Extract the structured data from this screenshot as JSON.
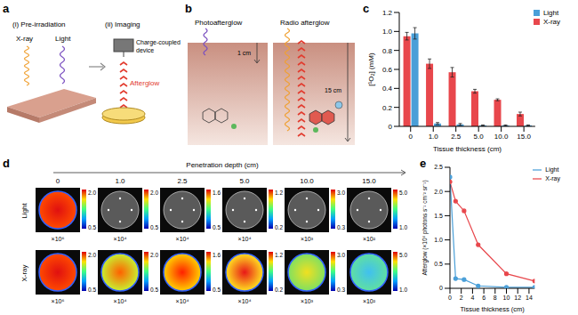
{
  "panel_labels": [
    "a",
    "b",
    "c",
    "d",
    "e"
  ],
  "panel_a": {
    "steps": [
      "(i) Pre-irradiation",
      "(ii) Imaging"
    ],
    "sources": [
      "X-ray",
      "Light"
    ],
    "detector": "Charge-coupled device",
    "signal": "Afterglow"
  },
  "panel_b": {
    "titles": [
      "Photoafterglow",
      "Radio afterglow"
    ],
    "depths": [
      "1 cm",
      "15 cm"
    ]
  },
  "panel_d": {
    "axis_label": "Penetration depth (cm)",
    "depths": [
      "0",
      "1.0",
      "2.5",
      "5.0",
      "10.0",
      "15.0"
    ],
    "rows": [
      {
        "name": "Light",
        "scales": [
          {
            "max": "2.0",
            "min": "0.5",
            "factor": "×10⁶"
          },
          {
            "max": "2.0",
            "min": "0.5",
            "factor": "×10⁴"
          },
          {
            "max": "1.6",
            "min": "0.5",
            "factor": "×10⁴"
          },
          {
            "max": "1.2",
            "min": "0.2",
            "factor": "×10⁴"
          },
          {
            "max": "3.0",
            "min": "0.3",
            "factor": "×10³"
          },
          {
            "max": "5.0",
            "min": "1.0",
            "factor": "×10²"
          }
        ]
      },
      {
        "name": "X-ray",
        "scales": [
          {
            "max": "2.0",
            "min": "0.5",
            "factor": "×10⁶"
          },
          {
            "max": "2.0",
            "min": "0.5",
            "factor": "×10⁴"
          },
          {
            "max": "1.6",
            "min": "0.5",
            "factor": "×10⁴"
          },
          {
            "max": "1.2",
            "min": "0.2",
            "factor": "×10⁴"
          },
          {
            "max": "3.0",
            "min": "0.3",
            "factor": "×10³"
          },
          {
            "max": "5.0",
            "min": "1.0",
            "factor": "×10²"
          }
        ]
      }
    ]
  },
  "chart_data": [
    {
      "type": "bar",
      "x_label": "Tissue thickness (cm)",
      "y_label": "[¹O₂] (mM)",
      "categories": [
        "0",
        "1.0",
        "2.5",
        "5.0",
        "10.0",
        "15.0"
      ],
      "series": [
        {
          "name": "X-ray",
          "color": "#e8474c",
          "values": [
            0.95,
            0.66,
            0.57,
            0.37,
            0.28,
            0.13
          ],
          "errors": [
            0.04,
            0.05,
            0.05,
            0.02,
            0.01,
            0.02
          ]
        },
        {
          "name": "Light",
          "color": "#4a9fd8",
          "values": [
            0.98,
            0.03,
            0.02,
            0.01,
            0.01,
            0.01
          ],
          "errors": [
            0.06,
            0.01,
            0.01,
            0.005,
            0.005,
            0.005
          ]
        }
      ],
      "ylim": [
        0,
        1.2
      ],
      "yticks": [
        0,
        0.2,
        0.4,
        0.6,
        0.8,
        {
          "value": 1,
          "label": "1.0"
        },
        1.2
      ],
      "legend": "upper right"
    },
    {
      "type": "line",
      "x_label": "Tissue thickness (cm)",
      "y_label": "Afterglow (×10⁶ photons s⁻¹ cm⁻² sr⁻¹)",
      "x": [
        0,
        1,
        2.5,
        5,
        10,
        15
      ],
      "series": [
        {
          "name": "X-ray",
          "color": "#e8474c",
          "marker": "circle",
          "values": [
            2.2,
            1.8,
            1.6,
            0.9,
            0.3,
            0.15
          ]
        },
        {
          "name": "Light",
          "color": "#4a9fd8",
          "marker": "circle",
          "values": [
            2.3,
            0.2,
            0.18,
            0.05,
            0.02,
            0.02
          ]
        }
      ],
      "xlim": [
        0,
        15
      ],
      "xticks": [
        0,
        2,
        4,
        6,
        8,
        10,
        12,
        14
      ],
      "ylim": [
        0,
        2.5
      ],
      "yticks": [
        0,
        0.5,
        {
          "value": 1,
          "label": "1.0"
        },
        1.5,
        {
          "value": 2,
          "label": "2.0"
        },
        2.5
      ],
      "legend": "upper right"
    }
  ]
}
